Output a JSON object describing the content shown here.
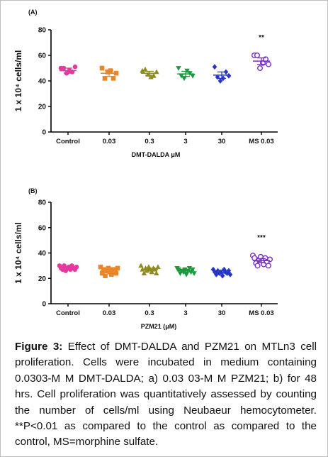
{
  "chart_data": [
    {
      "type": "scatter",
      "panel_label": "(A)",
      "ylabel": "1 x 10⁴ cells/ml",
      "xlabel": "DMT-DALDA μM",
      "ylim": [
        0,
        80
      ],
      "yticks": [
        0,
        20,
        40,
        60,
        80
      ],
      "categories": [
        "Control",
        "0.03",
        "0.3",
        "3",
        "30",
        "MS 0.03"
      ],
      "series": [
        {
          "marker": "circle",
          "color": "#e5399e",
          "mean": 48,
          "sem": 2,
          "values": [
            50,
            50,
            46,
            48,
            47,
            51
          ]
        },
        {
          "marker": "square",
          "color": "#e8872a",
          "mean": 46,
          "sem": 2.5,
          "values": [
            50,
            42,
            47,
            48,
            42,
            46
          ]
        },
        {
          "marker": "triangle",
          "color": "#8e8a1e",
          "mean": 46,
          "sem": 1.5,
          "values": [
            48,
            49,
            45,
            43,
            44,
            47
          ]
        },
        {
          "marker": "triangle-down",
          "color": "#199a3c",
          "mean": 45.5,
          "sem": 2,
          "values": [
            50,
            44,
            42,
            48,
            46,
            44
          ]
        },
        {
          "marker": "diamond",
          "color": "#2636cc",
          "mean": 44.5,
          "sem": 2.5,
          "values": [
            51,
            43,
            40,
            42,
            47,
            44
          ]
        },
        {
          "marker": "open-circle",
          "color": "#7b2fbe",
          "mean": 55.5,
          "sem": 2.5,
          "values": [
            60,
            60,
            50,
            54,
            57,
            53
          ]
        }
      ],
      "annotations": [
        {
          "category": "MS 0.03",
          "text": "**"
        }
      ]
    },
    {
      "type": "scatter",
      "panel_label": "(B)",
      "ylabel": "1 x 10⁴ cells/ml",
      "xlabel": "PZM21 (μM)",
      "ylim": [
        0,
        80
      ],
      "yticks": [
        0,
        20,
        40,
        60,
        80
      ],
      "categories": [
        "Control",
        "0.03",
        "0.3",
        "3",
        "30",
        "MS 0.03"
      ],
      "series": [
        {
          "marker": "circle",
          "color": "#e5399e",
          "mean": 28,
          "sem": 1,
          "values": [
            30,
            28,
            27,
            30,
            26,
            28,
            29,
            27,
            30,
            28,
            27,
            29
          ]
        },
        {
          "marker": "square",
          "color": "#e8872a",
          "mean": 26,
          "sem": 1.5,
          "values": [
            29,
            24,
            27,
            22,
            26,
            28,
            25,
            23,
            27,
            26,
            24,
            28
          ]
        },
        {
          "marker": "triangle",
          "color": "#8e8a1e",
          "mean": 27,
          "sem": 1,
          "values": [
            30,
            27,
            24,
            28,
            26,
            29,
            27,
            25,
            28,
            27,
            24,
            29
          ]
        },
        {
          "marker": "triangle-down",
          "color": "#199a3c",
          "mean": 26,
          "sem": 1,
          "values": [
            28,
            27,
            24,
            26,
            25,
            27,
            23,
            26,
            28,
            25,
            27,
            24
          ]
        },
        {
          "marker": "diamond",
          "color": "#2636cc",
          "mean": 25,
          "sem": 1,
          "values": [
            27,
            25,
            23,
            26,
            24,
            25,
            22,
            27,
            25,
            24,
            26,
            23
          ]
        },
        {
          "marker": "open-circle",
          "color": "#7b2fbe",
          "mean": 34,
          "sem": 1.5,
          "values": [
            38,
            36,
            32,
            30,
            35,
            37,
            34,
            31,
            36,
            33,
            30,
            35
          ]
        }
      ],
      "annotations": [
        {
          "category": "MS 0.03",
          "text": "***"
        }
      ]
    }
  ],
  "caption": {
    "label": "Figure 3:",
    "text": " Effect of DMT-DALDA and PZM21 on MTLn3 cell proliferation. Cells were incubated in medium containing 0.0303-M M DMT-DALDA; a) 0.03  03-M M PZM21; b) for 48 hrs. Cell proliferation was quantitatively assessed by counting the number of cells/ml using Neubaeur hemocytometer. **P<0.01 as compared to the control as compared to the control, MS=morphine sulfate."
  }
}
